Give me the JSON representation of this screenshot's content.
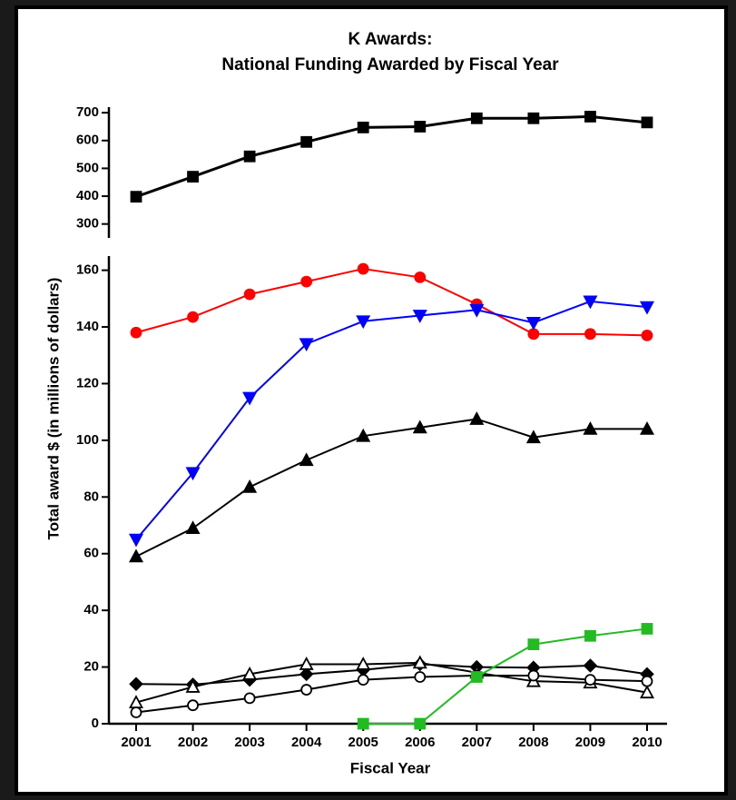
{
  "chart_data": [
    {
      "type": "line",
      "title": [
        "K Awards:",
        "National Funding Awarded by Fiscal Year"
      ],
      "ylim": [
        250,
        720
      ],
      "yticks": [
        300,
        400,
        500,
        600,
        700
      ],
      "series": [
        {
          "color": "#000000",
          "marker": "square",
          "marker_fill": "#000000",
          "values": [
            398,
            470,
            543,
            595,
            647,
            650,
            680,
            680,
            686,
            665
          ]
        }
      ]
    },
    {
      "type": "line",
      "x_label": "Fiscal Year",
      "y_label": "Total award $ (in millions of dollars)",
      "categories": [
        "2001",
        "2002",
        "2003",
        "2004",
        "2005",
        "2006",
        "2007",
        "2008",
        "2009",
        "2010"
      ],
      "ylim": [
        0,
        165
      ],
      "yticks": [
        0,
        20,
        40,
        60,
        80,
        100,
        120,
        140,
        160
      ],
      "series": [
        {
          "color": "#ff0000",
          "marker": "circle",
          "marker_fill": "#ff0000",
          "values": [
            138,
            143.5,
            151.5,
            156,
            160.5,
            157.5,
            148,
            137.5,
            137.5,
            137
          ]
        },
        {
          "color": "#0000ff",
          "marker": "triangle-down",
          "marker_fill": "#0000ff",
          "values": [
            65,
            88.5,
            115,
            134,
            142,
            144,
            146,
            141.5,
            149,
            147
          ]
        },
        {
          "color": "#000000",
          "marker": "triangle",
          "marker_fill": "#000000",
          "values": [
            59,
            69,
            83.5,
            93,
            101.5,
            104.5,
            107.5,
            101,
            104,
            104
          ]
        },
        {
          "color": "#000000",
          "marker": "diamond",
          "marker_fill": "#000000",
          "values": [
            14,
            13.8,
            15.5,
            17.5,
            19,
            21,
            20,
            19.8,
            20.5,
            17.5
          ]
        },
        {
          "color": "#000000",
          "marker": "triangle",
          "marker_fill": "#ffffff",
          "values": [
            7.5,
            13,
            17.5,
            21,
            21,
            21.5,
            18,
            15,
            14.5,
            11
          ]
        },
        {
          "color": "#000000",
          "marker": "circle",
          "marker_fill": "#ffffff",
          "values": [
            4,
            6.5,
            9,
            12,
            15.5,
            16.5,
            17,
            17,
            15.5,
            15
          ]
        },
        {
          "color": "#22bb22",
          "marker": "square",
          "marker_fill": "#22bb22",
          "values": [
            null,
            null,
            null,
            null,
            0,
            0,
            16.5,
            28,
            31,
            33.5
          ]
        }
      ]
    }
  ]
}
